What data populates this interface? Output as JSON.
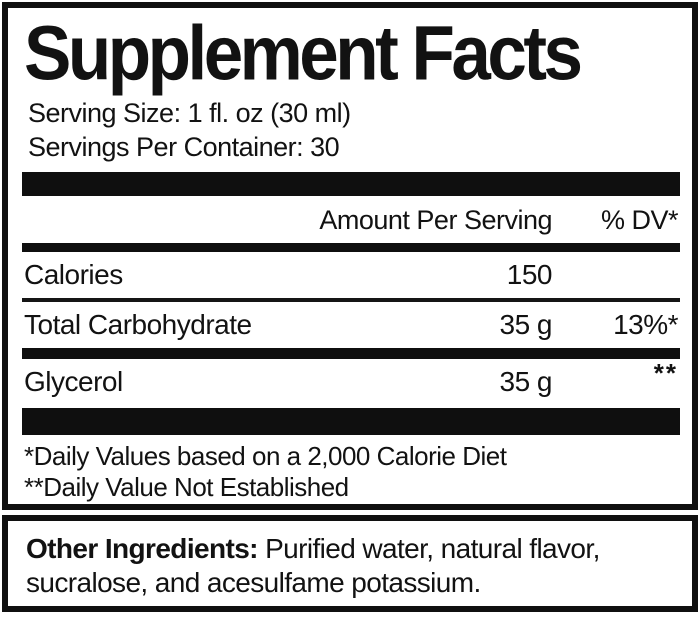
{
  "label": {
    "title": "Supplement Facts",
    "serving_size": "Serving Size: 1 fl. oz (30 ml)",
    "servings_per_container": "Servings Per Container: 30",
    "columns": {
      "amount": "Amount Per Serving",
      "dv": "% DV*"
    },
    "rows": [
      {
        "name": "Calories",
        "amount": "150",
        "dv": ""
      },
      {
        "name": "Total Carbohydrate",
        "amount": "35 g",
        "dv": "13%*"
      },
      {
        "name": "Glycerol",
        "amount": "35 g",
        "dv": "**"
      }
    ],
    "footnotes": [
      "*Daily Values based on a 2,000 Calorie Diet",
      "**Daily Value Not Established"
    ],
    "other_ingredients": {
      "label": "Other Ingredients:",
      "text": " Purified water, natural flavor, sucralose, and acesulfame potassium."
    }
  },
  "colors": {
    "ink": "#121212",
    "bar": "#0f0f0f",
    "background": "#ffffff"
  }
}
